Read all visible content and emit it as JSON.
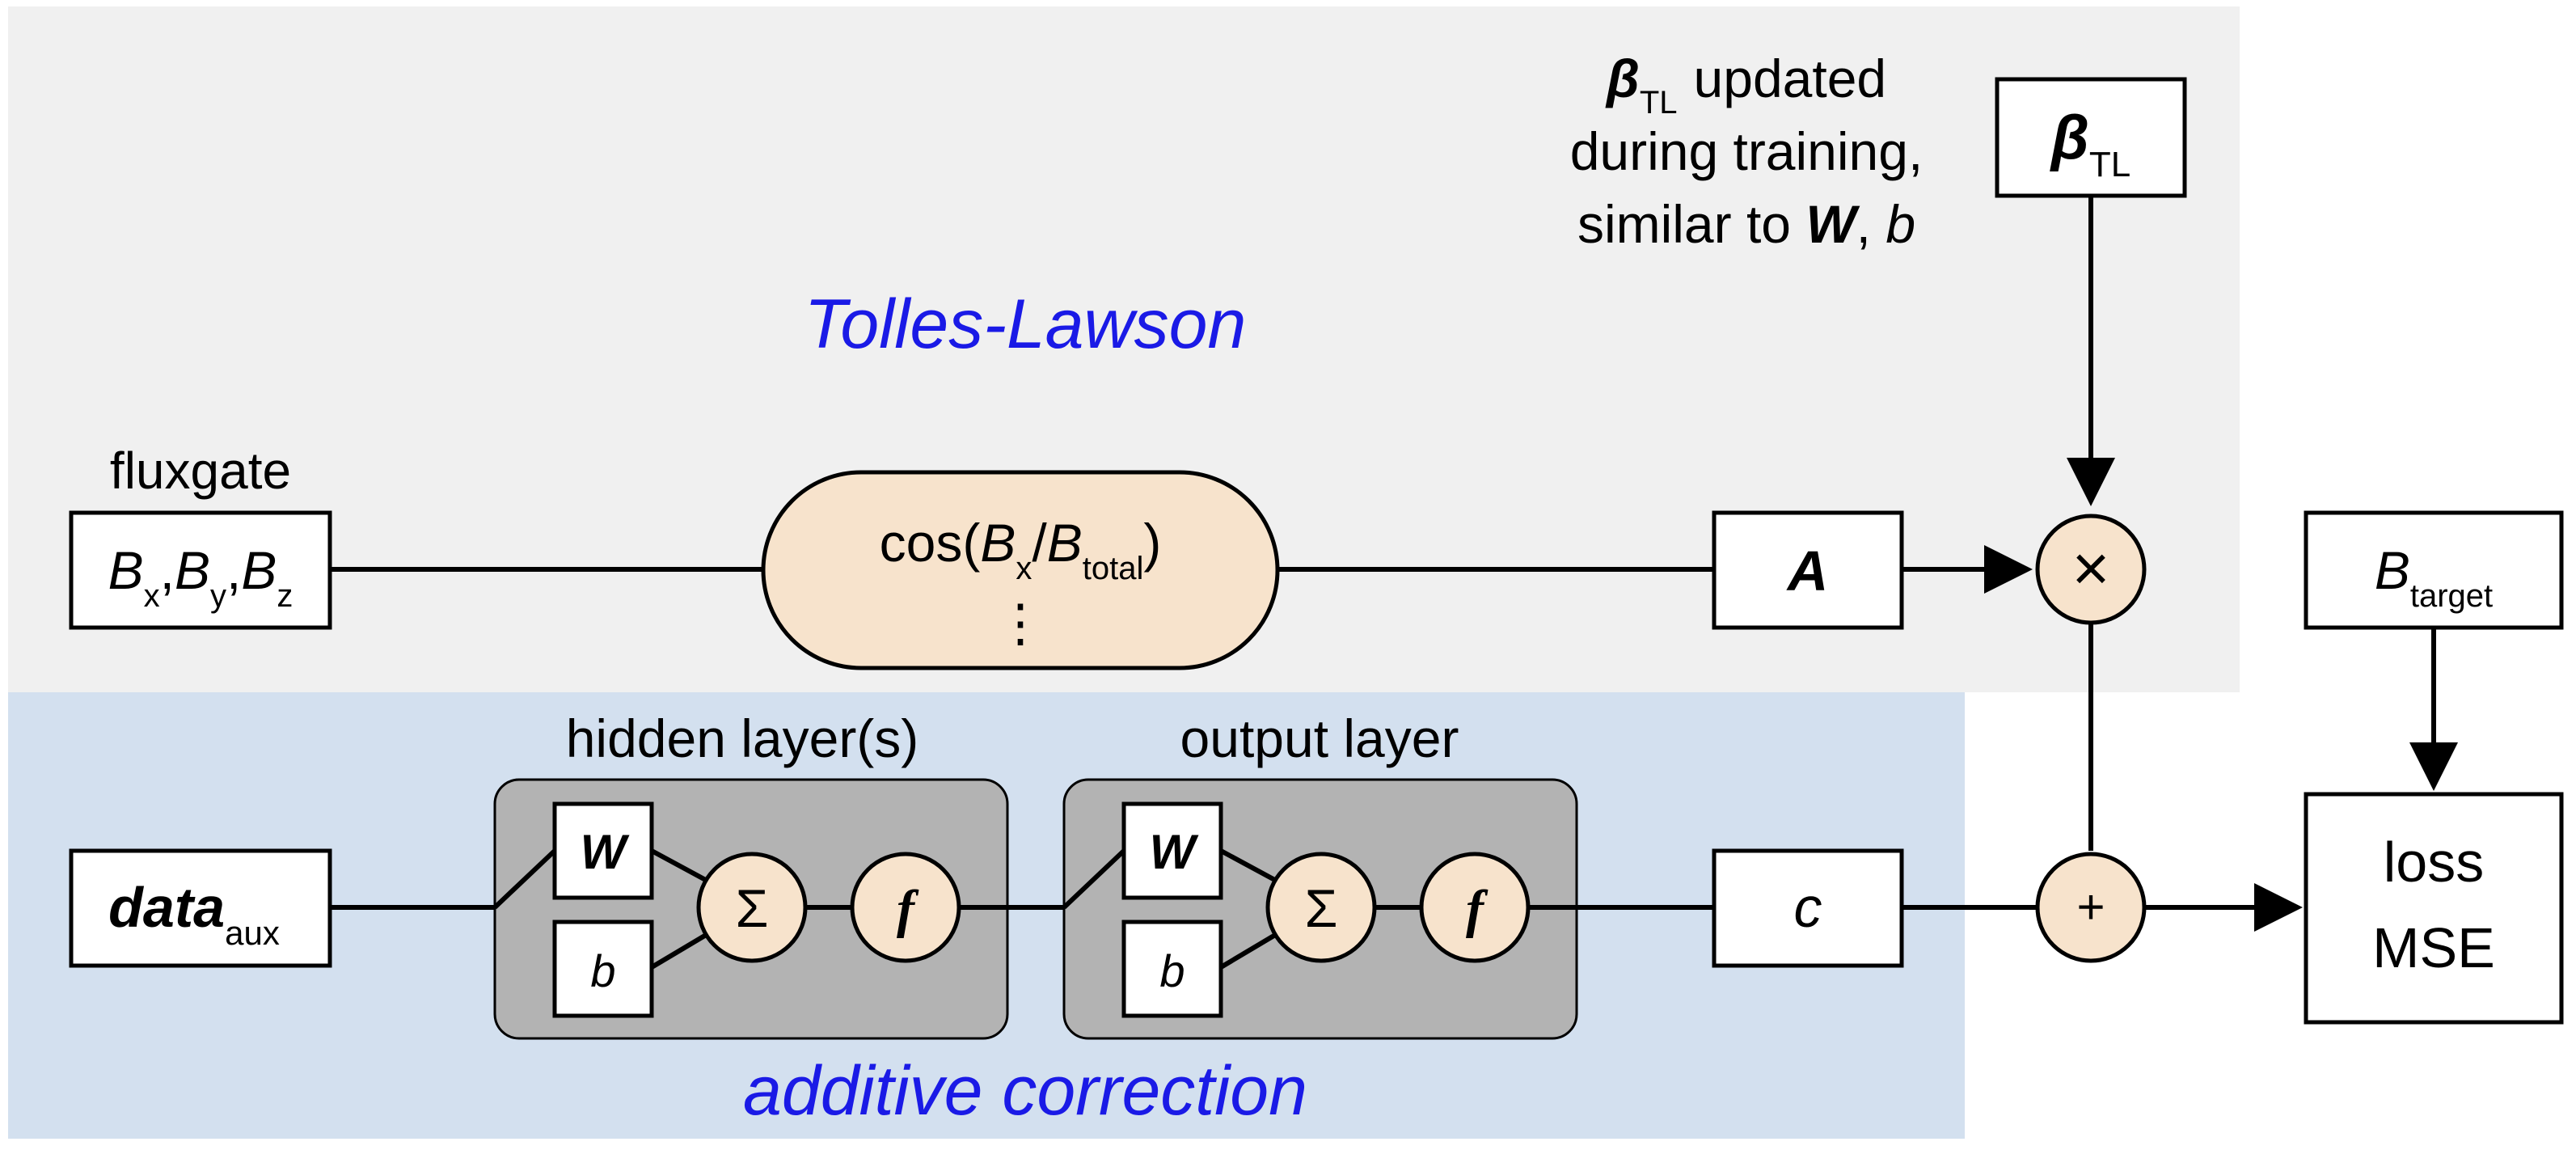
{
  "regions": {
    "tolles_lawson_title": "Tolles-Lawson",
    "additive_correction_title": "additive correction",
    "colors": {
      "tl_bg": "#f0f0f0",
      "nn_bg": "#d3e0ef",
      "node_fill": "#f7e3cc",
      "layer_fill": "#b3b3b3",
      "title_blue": "#1a1ae6"
    }
  },
  "fluxgate": {
    "label": "fluxgate",
    "B": "B",
    "x": "x",
    "y": "y",
    "z": "z",
    "comma": ","
  },
  "feature": {
    "cos": "cos(",
    "B": "B",
    "x": "x",
    "slash": "/",
    "total": "total",
    "close": ")",
    "ellipsis": "⋮"
  },
  "A_label": "A",
  "beta": {
    "symbol": "β",
    "sub": "TL",
    "note_updated": "updated",
    "note_line2": "during training,",
    "note_line3_pre": "similar to ",
    "note_W": "W",
    "note_comma": ", ",
    "note_b": "b"
  },
  "ops": {
    "multiply": "×",
    "plus": "+",
    "sum": "Σ",
    "f": "f"
  },
  "target": {
    "B": "B",
    "sub": "target"
  },
  "loss": {
    "line1": "loss",
    "line2": "MSE"
  },
  "data_aux": {
    "main": "data",
    "sub": "aux"
  },
  "hidden_layer": {
    "title": "hidden layer(s)",
    "W": "W",
    "b": "b"
  },
  "output_layer": {
    "title": "output layer",
    "W": "W",
    "b": "b"
  },
  "c_label": "c"
}
